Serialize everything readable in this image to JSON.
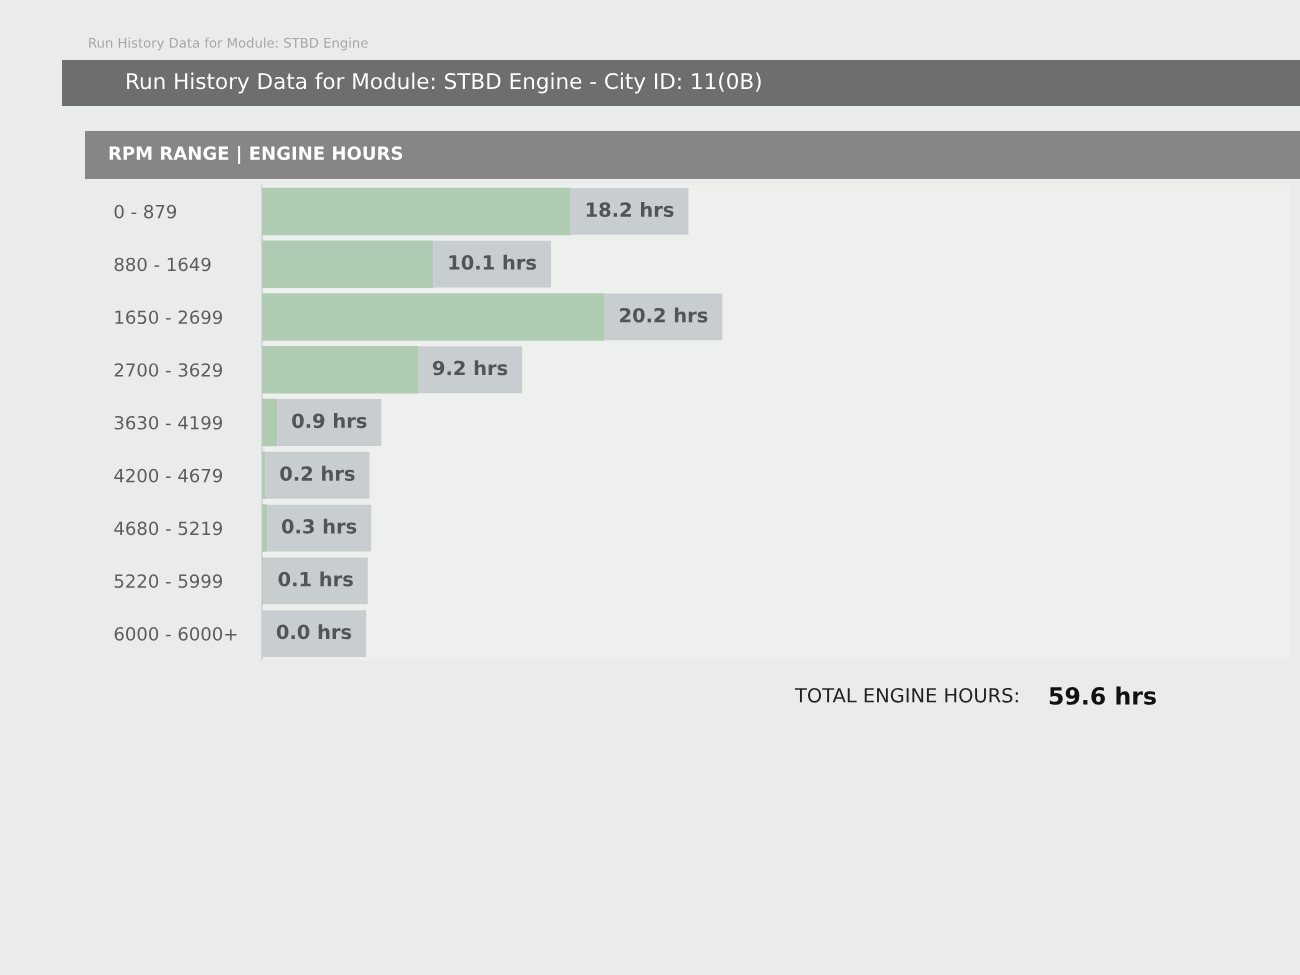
{
  "chart_data": {
    "type": "bar",
    "orientation": "horizontal",
    "title": "Run History Data for Module: STBD Engine - City ID: 11(0B)",
    "subtitle": "RPM RANGE | ENGINE HOURS",
    "categories": [
      "0 - 879",
      "880 - 1649",
      "1650 - 2699",
      "2700 - 3629",
      "3630 - 4199",
      "4200 - 4679",
      "4680 - 5219",
      "5220 - 5999",
      "6000 - 6000+"
    ],
    "values": [
      18.2,
      10.1,
      20.2,
      9.2,
      0.9,
      0.2,
      0.3,
      0.1,
      0.0
    ],
    "value_labels": [
      "18.2 hrs",
      "10.1 hrs",
      "20.2 hrs",
      "9.2 hrs",
      "0.9 hrs",
      "0.2 hrs",
      "0.3 hrs",
      "0.1 hrs",
      "0.0 hrs"
    ],
    "color": "#afcbb2",
    "tick_labels": "y",
    "annotations": [
      "Run History Data for Module: STBD Engine",
      "TOTAL ENGINE HOURS:",
      "59.6 hrs"
    ]
  }
}
